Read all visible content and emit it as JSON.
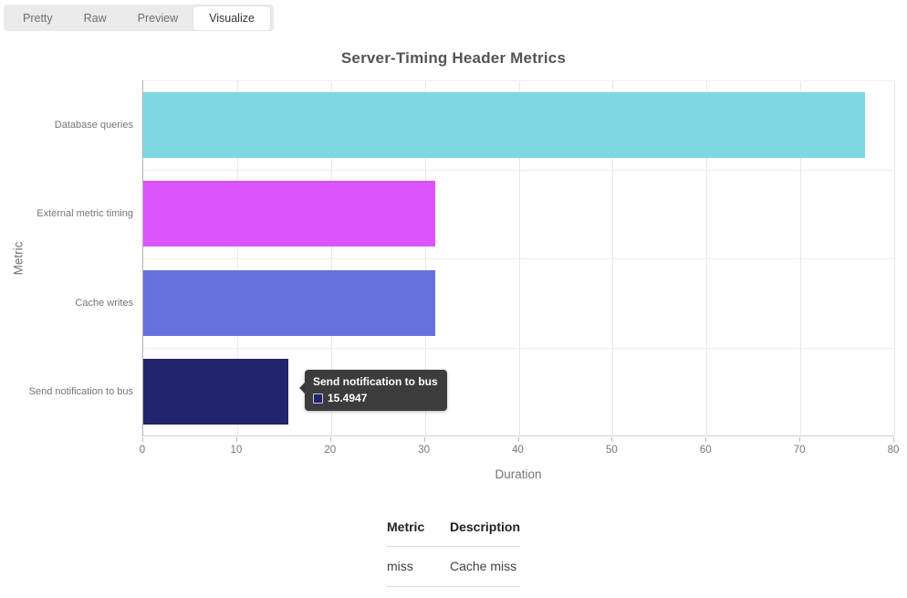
{
  "tabs": {
    "items": [
      {
        "label": "Pretty",
        "active": false
      },
      {
        "label": "Raw",
        "active": false
      },
      {
        "label": "Preview",
        "active": false
      },
      {
        "label": "Visualize",
        "active": true
      }
    ]
  },
  "chart_data": {
    "type": "bar",
    "orientation": "horizontal",
    "title": "Server-Timing Header Metrics",
    "categories": [
      "Database queries",
      "External metric timing",
      "Cache writes",
      "Send notification to bus"
    ],
    "values": [
      76.9,
      31.1,
      31.1,
      15.4947
    ],
    "bar_colors": [
      "#7ed8e2",
      "#dc55fa",
      "#6671dd",
      "#22246b"
    ],
    "xlabel": "Duration",
    "ylabel": "Metric",
    "xlim": [
      0,
      80
    ],
    "xticks": [
      0,
      10,
      20,
      30,
      40,
      50,
      60,
      70,
      80
    ],
    "grid": true,
    "legend": false
  },
  "tooltip": {
    "title": "Send notification to bus",
    "value": "15.4947",
    "swatch_color": "#22246b",
    "background": "#3c3c3c"
  },
  "table": {
    "headers": [
      "Metric",
      "Description"
    ],
    "rows": [
      [
        "miss",
        "Cache miss"
      ]
    ]
  }
}
